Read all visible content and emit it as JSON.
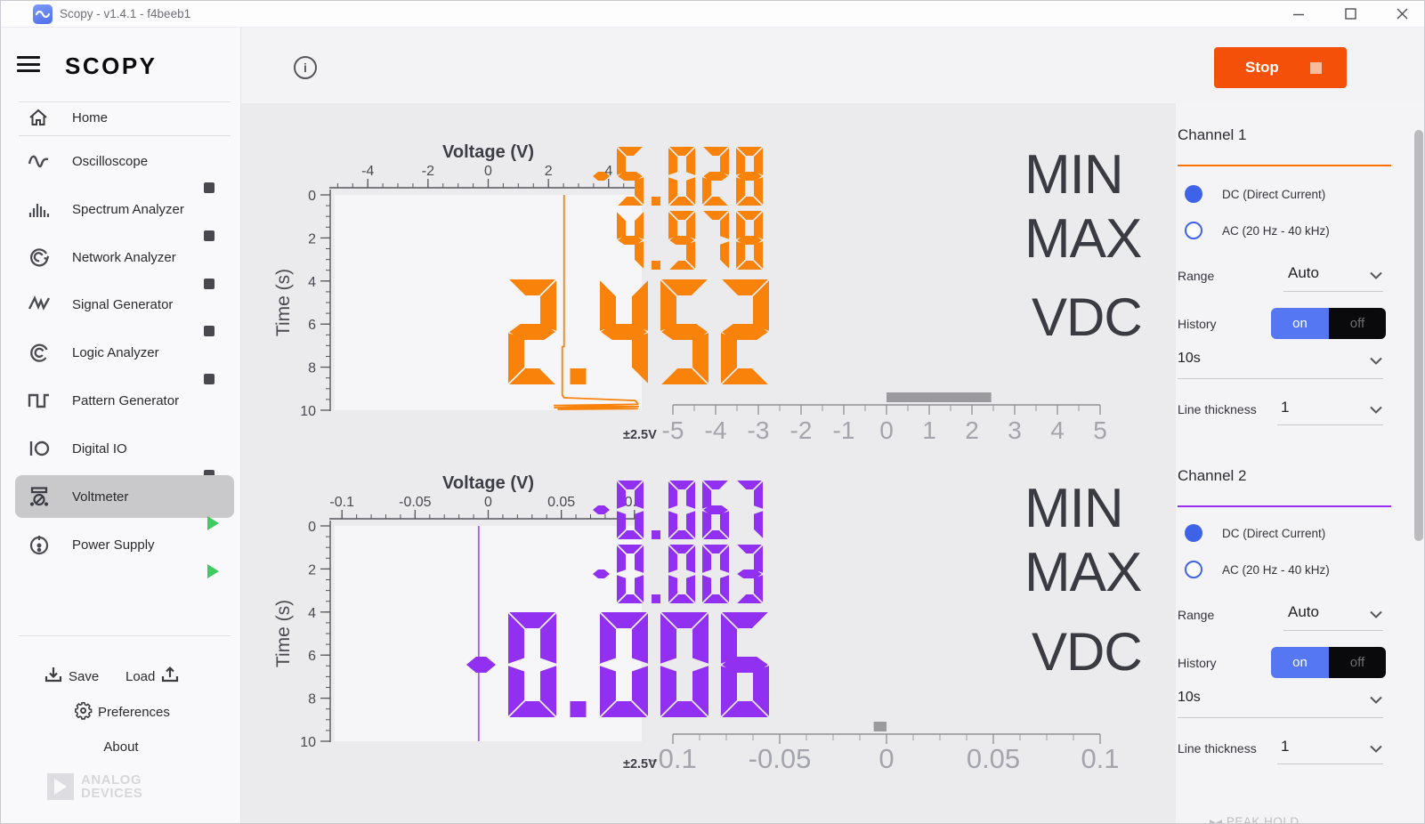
{
  "titlebar": {
    "title": "Scopy - v1.4.1 - f4beeb1"
  },
  "sidebar": {
    "logo": "SCOPY",
    "items": [
      {
        "label": "Home",
        "icon": "home",
        "status": "none"
      },
      {
        "label": "Oscilloscope",
        "icon": "oscilloscope",
        "status": "stopped"
      },
      {
        "label": "Spectrum Analyzer",
        "icon": "spectrum",
        "status": "stopped"
      },
      {
        "label": "Network Analyzer",
        "icon": "network",
        "status": "stopped"
      },
      {
        "label": "Signal Generator",
        "icon": "signal",
        "status": "stopped"
      },
      {
        "label": "Logic Analyzer",
        "icon": "logic",
        "status": "stopped"
      },
      {
        "label": "Pattern Generator",
        "icon": "pattern",
        "status": "none"
      },
      {
        "label": "Digital IO",
        "icon": "digitalio",
        "status": "stopped"
      },
      {
        "label": "Voltmeter",
        "icon": "voltmeter",
        "status": "running",
        "selected": true
      },
      {
        "label": "Power Supply",
        "icon": "powersupply",
        "status": "running"
      }
    ],
    "footer": {
      "save": "Save",
      "load": "Load",
      "preferences": "Preferences",
      "about": "About",
      "brand_line1": "ANALOG",
      "brand_line2": "DEVICES"
    }
  },
  "toolbar": {
    "stop_label": "Stop"
  },
  "displays": {
    "ch1": {
      "min": "-5.028",
      "min_label": "MIN",
      "max": "4.978",
      "max_label": "MAX",
      "value": "2.452",
      "unit": "VDC",
      "color": "#f8820a",
      "range_label": "±2.5V"
    },
    "ch2": {
      "min": "-0.067",
      "min_label": "MIN",
      "max": "-0.003",
      "max_label": "MAX",
      "value": "-0.006",
      "unit": "VDC",
      "color": "#9130f0",
      "range_label": "±2.5V"
    }
  },
  "panel": {
    "channels": [
      {
        "title": "Channel 1",
        "accent": "#ff7200",
        "dc_label": "DC (Direct Current)",
        "ac_label": "AC (20 Hz - 40 kHz)",
        "mode": "DC",
        "range_label": "Range",
        "range_value": "Auto",
        "history_label": "History",
        "on_label": "on",
        "off_label": "off",
        "history_state": "on",
        "history_value": "10s",
        "line_thickness_label": "Line thickness",
        "line_thickness_value": "1"
      },
      {
        "title": "Channel 2",
        "accent": "#9a2ff2",
        "dc_label": "DC (Direct Current)",
        "ac_label": "AC (20 Hz - 40 kHz)",
        "mode": "DC",
        "range_label": "Range",
        "range_value": "Auto",
        "history_label": "History",
        "on_label": "on",
        "off_label": "off",
        "history_state": "on",
        "history_value": "10s",
        "line_thickness_label": "Line thickness",
        "line_thickness_value": "1"
      }
    ],
    "peak_hold_label": "PEAK HOLD"
  },
  "chart_data": [
    {
      "type": "line",
      "role": "history-plot",
      "channel": "Channel 1",
      "title": "Voltage (V)",
      "ylabel": "Time (s)",
      "x_range": [
        -5.1,
        5.1
      ],
      "x_major": [
        -4,
        -2,
        0,
        2,
        4
      ],
      "x_major_labels": [
        "-4",
        "-2",
        "0",
        "2",
        "4"
      ],
      "x_minor_step": 0.5,
      "y_range": [
        0,
        10
      ],
      "y_major": [
        0,
        2,
        4,
        6,
        8,
        10
      ],
      "y_major_labels": [
        "0",
        "2",
        "4",
        "6",
        "8",
        "10"
      ],
      "y_minor_step": 0.5,
      "color": "#f8820a",
      "series": [
        {
          "name": "channel1-voltage-history",
          "points": [
            [
              2.52,
              0
            ],
            [
              2.52,
              7.05
            ],
            [
              2.46,
              7.05
            ],
            [
              2.46,
              9.3
            ],
            [
              2.52,
              9.42
            ],
            [
              4.88,
              9.55
            ],
            [
              4.94,
              9.64
            ],
            [
              4.97,
              9.72
            ],
            [
              2.2,
              9.78
            ],
            [
              4.99,
              9.83
            ],
            [
              2.2,
              9.88
            ],
            [
              4.95,
              9.93
            ],
            [
              2.3,
              9.96
            ]
          ]
        }
      ]
    },
    {
      "type": "line",
      "role": "history-plot",
      "channel": "Channel 2",
      "title": "Voltage (V)",
      "ylabel": "Time (s)",
      "x_range": [
        -0.105,
        0.105
      ],
      "x_major": [
        -0.1,
        -0.05,
        0,
        0.05,
        0.1
      ],
      "x_major_labels": [
        "-0.1",
        "-0.05",
        "0",
        "0.05",
        "0.1"
      ],
      "x_minor_step": 0.01,
      "y_range": [
        0,
        10
      ],
      "y_major": [
        0,
        2,
        4,
        6,
        8,
        10
      ],
      "y_major_labels": [
        "0",
        "2",
        "4",
        "6",
        "8",
        "10"
      ],
      "y_minor_step": 0.5,
      "color": "#a55bf0",
      "series": [
        {
          "name": "channel2-voltage-history",
          "points": [
            [
              -0.0065,
              0
            ],
            [
              -0.0065,
              10
            ]
          ]
        }
      ]
    },
    {
      "type": "gauge",
      "channel": "Channel 1",
      "range_label": "±2.5V",
      "range": [
        -5,
        5
      ],
      "value": 2.452,
      "label_values": [
        -5,
        -4,
        -3,
        -2,
        -1,
        0,
        1,
        2,
        3,
        4,
        5
      ],
      "labels": [
        "-5",
        "-4",
        "-3",
        "-2",
        "-1",
        "0",
        "1",
        "2",
        "3",
        "4",
        "5"
      ],
      "minor_step": 0.5,
      "label_size": 28,
      "bar_color": "#9b9b9f"
    },
    {
      "type": "gauge",
      "channel": "Channel 2",
      "range_label": "±2.5V",
      "range": [
        -0.1,
        0.1
      ],
      "value": -0.006,
      "label_values": [
        -0.1,
        -0.05,
        0,
        0.05,
        0.1
      ],
      "labels": [
        "-0.1",
        "-0.05",
        "0",
        "0.05",
        "0.1"
      ],
      "minor_step": 0.0125,
      "label_size": 31,
      "bar_color": "#9b9b9f"
    }
  ]
}
